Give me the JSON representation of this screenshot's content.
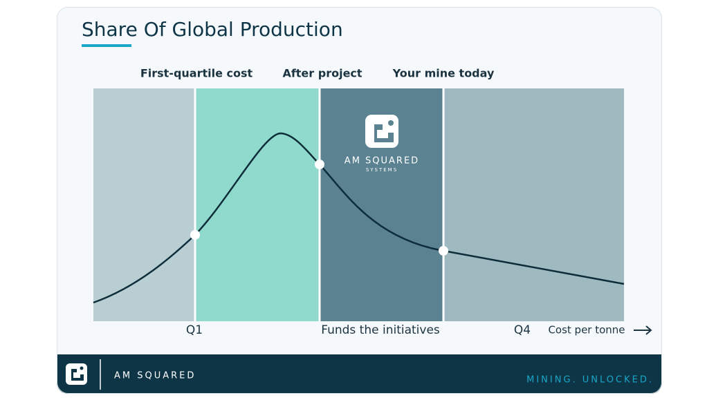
{
  "header": {
    "title": "Share Of Global Production"
  },
  "diagram": {
    "top_labels": [
      "First-quartile cost",
      "After project",
      "Your mine today"
    ],
    "bottom_labels": [
      "Q1",
      "Funds the initiatives",
      "Q4"
    ],
    "axis_label": "Cost per tonne",
    "logo": {
      "name": "AM SQUARED",
      "subtitle": "SYSTEMS"
    }
  },
  "footer": {
    "brand": "AM SQUARED",
    "tagline": "MINING. UNLOCKED."
  }
}
